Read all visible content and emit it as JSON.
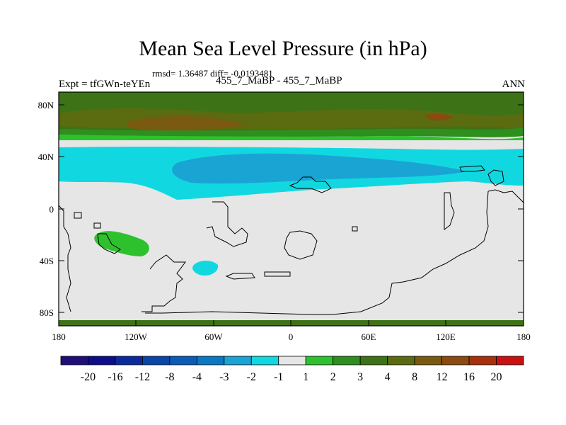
{
  "title": "Mean Sea Level Pressure (in hPa)",
  "stats": "rmsd= 1.36487 diff= -0.0193481",
  "experiment_label": "Expt = tfGWn-teYEn",
  "subtitle": "455_7_MaBP - 455_7_MaBP",
  "season": "ANN",
  "axes": {
    "y_ticks": [
      "80N",
      "40N",
      "0",
      "40S",
      "80S"
    ],
    "x_ticks": [
      "180",
      "120W",
      "60W",
      "0",
      "60E",
      "120E",
      "180"
    ]
  },
  "colorbar": {
    "labels": [
      "-20",
      "-16",
      "-12",
      "-8",
      "-4",
      "-3",
      "-2",
      "-1",
      "1",
      "2",
      "3",
      "4",
      "8",
      "12",
      "16",
      "20"
    ],
    "colors": [
      "#1f0f7a",
      "#0c0c8c",
      "#0a2a9e",
      "#0a45a8",
      "#0a5cb8",
      "#0a78c2",
      "#1aa4d4",
      "#11d8e0",
      "#e6e6e6",
      "#2dc22d",
      "#2e8f1e",
      "#3e7216",
      "#5a6b10",
      "#7a5a10",
      "#8a4a10",
      "#a8300c",
      "#cc1010"
    ]
  },
  "colors": {
    "neutral": "#e6e6e6",
    "light_cyan": "#11d8e0",
    "mid_blue": "#1aa4d4",
    "green_light": "#2dc22d",
    "green_dark": "#3e7216",
    "brown": "#7a5a10",
    "red_brown": "#8a4a10"
  }
}
